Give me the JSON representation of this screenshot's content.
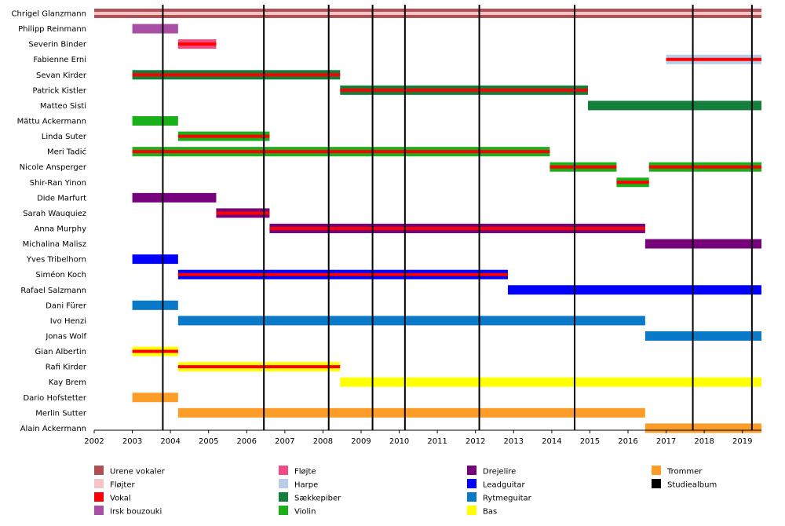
{
  "chart_data": {
    "type": "bar",
    "subtype": "timeline",
    "xlim": [
      2002,
      2019.5
    ],
    "x_ticks": [
      "2002",
      "2003",
      "2004",
      "2005",
      "2006",
      "2007",
      "2008",
      "2009",
      "2010",
      "2011",
      "2012",
      "2013",
      "2014",
      "2015",
      "2016",
      "2017",
      "2018",
      "2019"
    ],
    "album_years": [
      2003.8,
      2006.45,
      2008.15,
      2009.3,
      2010.15,
      2012.1,
      2014.6,
      2017.7,
      2019.25
    ],
    "colors": {
      "urene_vokaler": "#b15054",
      "flojter": "#f4c4c6",
      "vokal": "#ff0000",
      "irsk_bouzouki": "#a94ea5",
      "flojte": "#f24b82",
      "harpe": "#b8cde8",
      "saekkepiber": "#137f3b",
      "violin": "#19b019",
      "drejelire": "#76027c",
      "leadguitar": "#0000ff",
      "rytmeguitar": "#0979c8",
      "bas": "#ffff00",
      "trommer": "#fb9d27",
      "studiealbum": "#000000"
    },
    "members": [
      {
        "name": "Chrigel Glanzmann",
        "bars": [
          {
            "start": 2002,
            "end": 2019.5,
            "color": "urene_vokaler",
            "stripe": "flojter"
          }
        ]
      },
      {
        "name": "Philipp Reinmann",
        "bars": [
          {
            "start": 2003,
            "end": 2004.2,
            "color": "irsk_bouzouki"
          }
        ]
      },
      {
        "name": "Severin Binder",
        "bars": [
          {
            "start": 2004.2,
            "end": 2005.2,
            "color": "flojte",
            "stripe": "vokal"
          }
        ]
      },
      {
        "name": "Fabienne Erni",
        "bars": [
          {
            "start": 2017,
            "end": 2019.5,
            "color": "harpe",
            "stripe": "vokal"
          }
        ]
      },
      {
        "name": "Sevan Kirder",
        "bars": [
          {
            "start": 2003,
            "end": 2008.45,
            "color": "saekkepiber",
            "stripe": "vokal"
          }
        ]
      },
      {
        "name": "Patrick Kistler",
        "bars": [
          {
            "start": 2008.45,
            "end": 2014.95,
            "color": "saekkepiber",
            "stripe": "vokal"
          }
        ]
      },
      {
        "name": "Matteo Sisti",
        "bars": [
          {
            "start": 2014.95,
            "end": 2019.5,
            "color": "saekkepiber"
          }
        ]
      },
      {
        "name": "Mättu Ackermann",
        "bars": [
          {
            "start": 2003,
            "end": 2004.2,
            "color": "violin"
          }
        ]
      },
      {
        "name": "Linda Suter",
        "bars": [
          {
            "start": 2004.2,
            "end": 2006.6,
            "color": "violin",
            "stripe": "vokal"
          }
        ]
      },
      {
        "name": "Meri Tadić",
        "bars": [
          {
            "start": 2003,
            "end": 2013.95,
            "color": "violin",
            "stripe": "vokal"
          }
        ]
      },
      {
        "name": "Nicole Ansperger",
        "bars": [
          {
            "start": 2013.95,
            "end": 2015.7,
            "color": "violin",
            "stripe": "vokal"
          },
          {
            "start": 2016.55,
            "end": 2019.5,
            "color": "violin",
            "stripe": "vokal"
          }
        ]
      },
      {
        "name": "Shir-Ran Yinon",
        "bars": [
          {
            "start": 2015.7,
            "end": 2016.55,
            "color": "violin",
            "stripe": "vokal"
          }
        ]
      },
      {
        "name": "Dide Marfurt",
        "bars": [
          {
            "start": 2003,
            "end": 2005.2,
            "color": "drejelire"
          }
        ]
      },
      {
        "name": "Sarah Wauquiez",
        "bars": [
          {
            "start": 2005.2,
            "end": 2006.6,
            "color": "drejelire",
            "stripe": "vokal"
          }
        ]
      },
      {
        "name": "Anna Murphy",
        "bars": [
          {
            "start": 2006.6,
            "end": 2016.45,
            "color": "drejelire",
            "stripe": "vokal"
          }
        ]
      },
      {
        "name": "Michalina Malisz",
        "bars": [
          {
            "start": 2016.45,
            "end": 2019.5,
            "color": "drejelire"
          }
        ]
      },
      {
        "name": "Yves Tribelhorn",
        "bars": [
          {
            "start": 2003,
            "end": 2004.2,
            "color": "leadguitar"
          }
        ]
      },
      {
        "name": "Siméon Koch",
        "bars": [
          {
            "start": 2004.2,
            "end": 2012.85,
            "color": "leadguitar",
            "stripe": "vokal"
          }
        ]
      },
      {
        "name": "Rafael Salzmann",
        "bars": [
          {
            "start": 2012.85,
            "end": 2019.5,
            "color": "leadguitar"
          }
        ]
      },
      {
        "name": "Dani Fürer",
        "bars": [
          {
            "start": 2003,
            "end": 2004.2,
            "color": "rytmeguitar"
          }
        ]
      },
      {
        "name": "Ivo Henzi",
        "bars": [
          {
            "start": 2004.2,
            "end": 2016.45,
            "color": "rytmeguitar"
          }
        ]
      },
      {
        "name": "Jonas Wolf",
        "bars": [
          {
            "start": 2016.45,
            "end": 2019.5,
            "color": "rytmeguitar"
          }
        ]
      },
      {
        "name": "Gian Albertin",
        "bars": [
          {
            "start": 2003,
            "end": 2004.2,
            "color": "bas",
            "stripe": "vokal"
          }
        ]
      },
      {
        "name": "Rafi Kirder",
        "bars": [
          {
            "start": 2004.2,
            "end": 2008.45,
            "color": "bas",
            "stripe": "vokal"
          }
        ]
      },
      {
        "name": "Kay Brem",
        "bars": [
          {
            "start": 2008.45,
            "end": 2019.5,
            "color": "bas"
          }
        ]
      },
      {
        "name": "Dario Hofstetter",
        "bars": [
          {
            "start": 2003,
            "end": 2004.2,
            "color": "trommer"
          }
        ]
      },
      {
        "name": "Merlin Sutter",
        "bars": [
          {
            "start": 2004.2,
            "end": 2016.45,
            "color": "trommer"
          }
        ]
      },
      {
        "name": "Alain Ackermann",
        "bars": [
          {
            "start": 2016.45,
            "end": 2019.5,
            "color": "trommer"
          }
        ]
      }
    ],
    "legend": [
      [
        {
          "label": "Urene vokaler",
          "color": "urene_vokaler"
        },
        {
          "label": "Fløjter",
          "color": "flojter"
        },
        {
          "label": "Vokal",
          "color": "vokal"
        },
        {
          "label": "Irsk bouzouki",
          "color": "irsk_bouzouki"
        }
      ],
      [
        {
          "label": "Fløjte",
          "color": "flojte"
        },
        {
          "label": "Harpe",
          "color": "harpe"
        },
        {
          "label": "Sækkepiber",
          "color": "saekkepiber"
        },
        {
          "label": "Violin",
          "color": "violin"
        }
      ],
      [
        {
          "label": "Drejelire",
          "color": "drejelire"
        },
        {
          "label": "Leadguitar",
          "color": "leadguitar"
        },
        {
          "label": "Rytmeguitar",
          "color": "rytmeguitar"
        },
        {
          "label": "Bas",
          "color": "bas"
        }
      ],
      [
        {
          "label": "Trommer",
          "color": "trommer"
        },
        {
          "label": "Studiealbum",
          "color": "studiealbum"
        }
      ]
    ],
    "legend_position": "bottom",
    "grid": false
  }
}
